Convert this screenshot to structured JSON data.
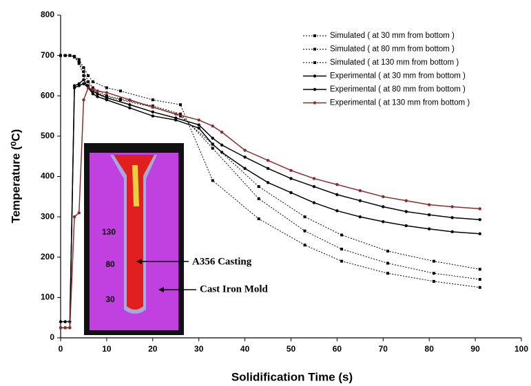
{
  "chart_data": {
    "type": "line",
    "xlabel": "Solidification Time (s)",
    "ylabel": "Temperature (⁰C)",
    "xlim": [
      0,
      100
    ],
    "xticks": [
      0,
      10,
      20,
      30,
      40,
      50,
      60,
      70,
      80,
      90,
      100
    ],
    "ylim": [
      0,
      800
    ],
    "yticks": [
      0,
      100,
      200,
      300,
      400,
      500,
      600,
      700,
      800
    ],
    "grid": false,
    "legend": "upper right",
    "annotations": [
      "130",
      "80",
      "30",
      "A356 Casting",
      "Cast Iron Mold"
    ],
    "series": [
      {
        "name": "Simulated ( at 30 mm from bottom )",
        "color": "#000000",
        "style": "dotted",
        "x": [
          0,
          1,
          2,
          3,
          4,
          5,
          6,
          7,
          10,
          13,
          20,
          26,
          33,
          43,
          53,
          61,
          71,
          81,
          91
        ],
        "values": [
          700,
          700,
          700,
          698,
          690,
          670,
          650,
          635,
          620,
          612,
          590,
          578,
          390,
          295,
          230,
          190,
          160,
          140,
          125
        ]
      },
      {
        "name": "Simulated ( at 80 mm from bottom )",
        "color": "#000000",
        "style": "dotted",
        "x": [
          0,
          1,
          2,
          3,
          4,
          5,
          6,
          7,
          10,
          13,
          20,
          26,
          33,
          43,
          53,
          61,
          71,
          81,
          91
        ],
        "values": [
          700,
          700,
          700,
          697,
          685,
          660,
          635,
          620,
          600,
          592,
          575,
          555,
          470,
          345,
          265,
          220,
          185,
          160,
          145
        ]
      },
      {
        "name": "Simulated ( at 130 mm from bottom )",
        "color": "#000000",
        "style": "dotted",
        "x": [
          0,
          1,
          2,
          3,
          4,
          5,
          6,
          7,
          10,
          13,
          20,
          26,
          33,
          43,
          53,
          61,
          71,
          81,
          91
        ],
        "values": [
          700,
          700,
          700,
          696,
          680,
          650,
          625,
          612,
          598,
          590,
          572,
          550,
          480,
          375,
          300,
          255,
          215,
          190,
          170
        ]
      },
      {
        "name": "Experimental ( at 30 mm from bottom )",
        "color": "#000000",
        "style": "solid",
        "x": [
          0,
          1,
          2,
          3,
          4,
          5,
          6,
          7,
          8,
          10,
          15,
          20,
          25,
          30,
          33,
          35,
          40,
          45,
          50,
          55,
          60,
          65,
          70,
          75,
          80,
          85,
          91
        ],
        "values": [
          25,
          25,
          25,
          625,
          630,
          640,
          620,
          605,
          598,
          590,
          570,
          550,
          540,
          520,
          480,
          460,
          420,
          385,
          360,
          335,
          315,
          300,
          288,
          278,
          270,
          263,
          258
        ]
      },
      {
        "name": "Experimental ( at 80 mm from bottom )",
        "color": "#000000",
        "style": "solid",
        "x": [
          0,
          1,
          2,
          3,
          4,
          5,
          6,
          7,
          8,
          10,
          15,
          20,
          25,
          30,
          33,
          35,
          40,
          45,
          50,
          55,
          60,
          65,
          70,
          75,
          80,
          85,
          91
        ],
        "values": [
          40,
          40,
          40,
          620,
          625,
          630,
          620,
          612,
          605,
          595,
          578,
          560,
          545,
          528,
          495,
          478,
          448,
          420,
          395,
          375,
          355,
          340,
          325,
          313,
          305,
          298,
          293
        ]
      },
      {
        "name": "Experimental ( at 130 mm from bottom )",
        "color": "#8b2a2a",
        "style": "solid",
        "x": [
          0,
          1,
          2,
          3,
          4,
          5,
          6,
          7,
          8,
          10,
          15,
          20,
          25,
          30,
          33,
          35,
          40,
          45,
          50,
          55,
          60,
          65,
          70,
          75,
          80,
          85,
          91
        ],
        "values": [
          25,
          25,
          25,
          300,
          310,
          590,
          620,
          615,
          612,
          608,
          590,
          572,
          555,
          540,
          525,
          510,
          465,
          440,
          415,
          395,
          380,
          365,
          350,
          340,
          330,
          325,
          320
        ]
      }
    ]
  }
}
